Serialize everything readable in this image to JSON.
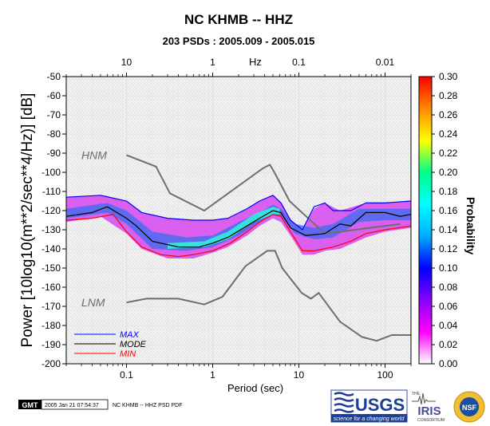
{
  "chart_data": {
    "type": "heatmap",
    "title": "NC KHMB -- HHZ",
    "subtitle": "203 PSDs : 2005.009 - 2005.015",
    "xlabel": "Period (sec)",
    "xlabel_top": "Hz",
    "ylabel": "Power [10log10(m**2/sec**4/Hz)] [dB]",
    "xscale": "log",
    "xlim": [
      0.02,
      200
    ],
    "ylim": [
      -200,
      -50
    ],
    "x_ticks": [
      {
        "value": 0.1,
        "label": "0.1"
      },
      {
        "value": 1,
        "label": "1"
      },
      {
        "value": 10,
        "label": "10"
      },
      {
        "value": 100,
        "label": "100"
      }
    ],
    "x_top_ticks": [
      {
        "value": 0.1,
        "label": "10"
      },
      {
        "value": 1,
        "label": "1"
      },
      {
        "value": 10,
        "label": "0.1"
      },
      {
        "value": 100,
        "label": "0.01"
      }
    ],
    "y_ticks": [
      {
        "value": -50,
        "label": "-50"
      },
      {
        "value": -60,
        "label": "-60"
      },
      {
        "value": -70,
        "label": "-70"
      },
      {
        "value": -80,
        "label": "-80"
      },
      {
        "value": -90,
        "label": "-90"
      },
      {
        "value": -100,
        "label": "-100"
      },
      {
        "value": -110,
        "label": "-110"
      },
      {
        "value": -120,
        "label": "-120"
      },
      {
        "value": -130,
        "label": "-130"
      },
      {
        "value": -140,
        "label": "-140"
      },
      {
        "value": -150,
        "label": "-150"
      },
      {
        "value": -160,
        "label": "-160"
      },
      {
        "value": -170,
        "label": "-170"
      },
      {
        "value": -180,
        "label": "-180"
      },
      {
        "value": -190,
        "label": "-190"
      },
      {
        "value": -200,
        "label": "-200"
      }
    ],
    "grid": true,
    "colorbar": {
      "label": "Probability",
      "range": [
        0,
        0.3
      ],
      "ticks": [
        {
          "value": 0.0,
          "label": "0.00"
        },
        {
          "value": 0.02,
          "label": "0.02"
        },
        {
          "value": 0.04,
          "label": "0.04"
        },
        {
          "value": 0.06,
          "label": "0.06"
        },
        {
          "value": 0.08,
          "label": "0.08"
        },
        {
          "value": 0.1,
          "label": "0.10"
        },
        {
          "value": 0.12,
          "label": "0.12"
        },
        {
          "value": 0.14,
          "label": "0.14"
        },
        {
          "value": 0.16,
          "label": "0.16"
        },
        {
          "value": 0.18,
          "label": "0.18"
        },
        {
          "value": 0.2,
          "label": "0.20"
        },
        {
          "value": 0.22,
          "label": "0.22"
        },
        {
          "value": 0.24,
          "label": "0.24"
        },
        {
          "value": 0.26,
          "label": "0.26"
        },
        {
          "value": 0.28,
          "label": "0.28"
        },
        {
          "value": 0.3,
          "label": "0.30"
        }
      ],
      "colors": [
        "#ffffff",
        "#ff00ff",
        "#8800ff",
        "#0000ff",
        "#00aaff",
        "#00ffff",
        "#00ff88",
        "#ffff00",
        "#ff8800",
        "#ff0000"
      ]
    },
    "reference_models": [
      {
        "name": "HNM",
        "label": "HNM",
        "label_at": {
          "x": 0.03,
          "y": -91
        },
        "x": [
          0.1,
          0.22,
          0.32,
          0.8,
          3.8,
          4.6,
          5.2,
          7.8,
          20,
          100,
          150
        ],
        "y": [
          -91,
          -97,
          -111,
          -120,
          -98,
          -96,
          -100,
          -115,
          -132,
          -128,
          -127
        ]
      },
      {
        "name": "LNM",
        "label": "LNM",
        "label_at": {
          "x": 0.03,
          "y": -168
        },
        "x": [
          0.1,
          0.17,
          0.4,
          0.8,
          1.3,
          2.4,
          4.3,
          5.3,
          6.4,
          10.8,
          13.8,
          17,
          30,
          54,
          80,
          120,
          200
        ],
        "y": [
          -168,
          -166,
          -166,
          -169,
          -165,
          -149,
          -141,
          -141,
          -150,
          -163,
          -166,
          -163,
          -178,
          -186,
          -188,
          -185,
          -185
        ]
      }
    ],
    "series": [
      {
        "name": "MAX",
        "label": "MAX",
        "color": "#0000ff",
        "x": [
          0.02,
          0.05,
          0.1,
          0.15,
          0.3,
          0.6,
          1,
          1.5,
          2.5,
          3.5,
          5,
          6.2,
          8,
          11,
          15,
          20,
          25,
          40,
          60,
          100,
          200
        ],
        "y": [
          -113,
          -112,
          -115,
          -121,
          -124,
          -125,
          -125,
          -124,
          -119,
          -115,
          -112,
          -116,
          -125,
          -130,
          -118,
          -116,
          -120,
          -120,
          -116,
          -116,
          -115
        ]
      },
      {
        "name": "MODE",
        "label": "MODE",
        "color": "#000000",
        "x": [
          0.02,
          0.04,
          0.06,
          0.1,
          0.13,
          0.2,
          0.4,
          0.7,
          1,
          1.5,
          2.5,
          3.5,
          5,
          6.2,
          8,
          12,
          20,
          30,
          40,
          60,
          100,
          150,
          200
        ],
        "y": [
          -123,
          -121,
          -118,
          -124,
          -128,
          -136,
          -139,
          -139,
          -137,
          -134,
          -128,
          -124,
          -120,
          -121,
          -129,
          -133,
          -132,
          -127,
          -128,
          -121,
          -121,
          -123,
          -122
        ]
      },
      {
        "name": "MIN",
        "label": "MIN",
        "color": "#ff0000",
        "x": [
          0.02,
          0.04,
          0.07,
          0.1,
          0.15,
          0.25,
          0.4,
          0.6,
          1,
          1.6,
          2.5,
          3.5,
          5,
          6.2,
          8,
          11,
          15,
          25,
          40,
          60,
          100,
          200
        ],
        "y": [
          -125,
          -124,
          -122,
          -131,
          -139,
          -143,
          -144,
          -143,
          -141,
          -137,
          -131,
          -126,
          -122,
          -123,
          -131,
          -141,
          -141,
          -139,
          -136,
          -132,
          -130,
          -128
        ]
      }
    ],
    "density_band": [
      {
        "x": 0.02,
        "lo": -126,
        "hi": -113
      },
      {
        "x": 0.05,
        "lo": -123,
        "hi": -112
      },
      {
        "x": 0.1,
        "lo": -132,
        "hi": -115
      },
      {
        "x": 0.15,
        "lo": -140,
        "hi": -121
      },
      {
        "x": 0.3,
        "lo": -145,
        "hi": -124
      },
      {
        "x": 0.6,
        "lo": -145,
        "hi": -125
      },
      {
        "x": 1,
        "lo": -142,
        "hi": -125
      },
      {
        "x": 1.5,
        "lo": -139,
        "hi": -124
      },
      {
        "x": 2.5,
        "lo": -133,
        "hi": -119
      },
      {
        "x": 3.5,
        "lo": -128,
        "hi": -115
      },
      {
        "x": 5,
        "lo": -124,
        "hi": -112
      },
      {
        "x": 6.2,
        "lo": -126,
        "hi": -116
      },
      {
        "x": 8,
        "lo": -133,
        "hi": -125
      },
      {
        "x": 11,
        "lo": -143,
        "hi": -130
      },
      {
        "x": 15,
        "lo": -143,
        "hi": -119
      },
      {
        "x": 20,
        "lo": -141,
        "hi": -116
      },
      {
        "x": 30,
        "lo": -140,
        "hi": -120
      },
      {
        "x": 60,
        "lo": -134,
        "hi": -116
      },
      {
        "x": 100,
        "lo": -131,
        "hi": -116
      },
      {
        "x": 200,
        "lo": -129,
        "hi": -115
      }
    ],
    "hot_band": [
      {
        "x": 0.02,
        "lo": -124,
        "hi": -119
      },
      {
        "x": 0.06,
        "lo": -121,
        "hi": -116
      },
      {
        "x": 0.1,
        "lo": -127,
        "hi": -120
      },
      {
        "x": 0.2,
        "lo": -140,
        "hi": -131
      },
      {
        "x": 0.5,
        "lo": -141,
        "hi": -134
      },
      {
        "x": 1,
        "lo": -139,
        "hi": -133
      },
      {
        "x": 2,
        "lo": -133,
        "hi": -126
      },
      {
        "x": 3.5,
        "lo": -126,
        "hi": -121
      },
      {
        "x": 5,
        "lo": -122,
        "hi": -117
      },
      {
        "x": 6.2,
        "lo": -123,
        "hi": -119
      },
      {
        "x": 9,
        "lo": -132,
        "hi": -127
      },
      {
        "x": 15,
        "lo": -135,
        "hi": -129
      },
      {
        "x": 25,
        "lo": -134,
        "hi": -127
      },
      {
        "x": 50,
        "lo": -126,
        "hi": -119
      },
      {
        "x": 100,
        "lo": -125,
        "hi": -119
      },
      {
        "x": 200,
        "lo": -125,
        "hi": -119
      }
    ],
    "core_band": [
      {
        "x": 0.3,
        "lo": -140,
        "hi": -137
      },
      {
        "x": 0.8,
        "lo": -139,
        "hi": -136
      },
      {
        "x": 1.5,
        "lo": -135,
        "hi": -131
      },
      {
        "x": 3,
        "lo": -126,
        "hi": -122
      },
      {
        "x": 5,
        "lo": -122,
        "hi": -118
      },
      {
        "x": 6,
        "lo": -122,
        "hi": -119
      }
    ]
  },
  "legend": {
    "items": [
      {
        "label": "MAX",
        "color": "#0000ff"
      },
      {
        "label": "MODE",
        "color": "#000000"
      },
      {
        "label": "MIN",
        "color": "#ff0000"
      }
    ]
  },
  "footer": {
    "gmt_logo": "GMT",
    "timestamp": "2005 Jan 21 07:54:37",
    "caption": "NC KHMB -- HHZ PSD PDF",
    "usgs_logo": "USGS",
    "usgs_tagline": "science for a changing world",
    "iris_prefix": "THE",
    "iris_logo": "IRIS",
    "iris_consortium": "CONSORTIUM",
    "nsf_logo": "NSF"
  }
}
